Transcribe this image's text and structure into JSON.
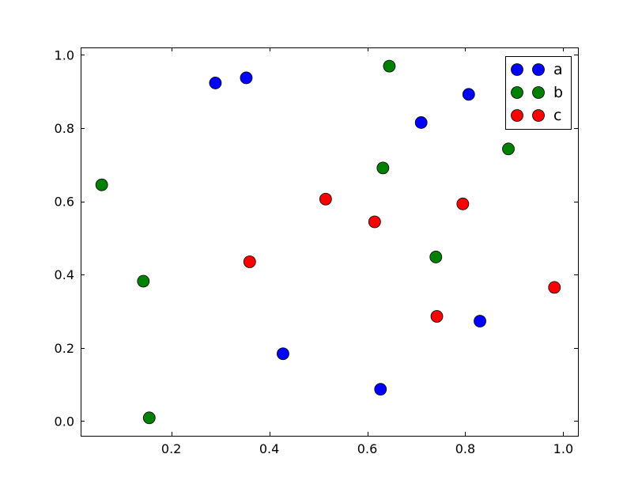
{
  "chart_data": {
    "type": "scatter",
    "title": "",
    "xlabel": "",
    "ylabel": "",
    "xlim": [
      0.015,
      1.03
    ],
    "ylim": [
      -0.04,
      1.02
    ],
    "x_ticks": [
      0.2,
      0.4,
      0.6,
      0.8,
      1.0
    ],
    "x_tick_labels": [
      "0.2",
      "0.4",
      "0.6",
      "0.8",
      "1.0"
    ],
    "y_ticks": [
      0.0,
      0.2,
      0.4,
      0.6,
      0.8,
      1.0
    ],
    "y_tick_labels": [
      "0.0",
      "0.2",
      "0.4",
      "0.6",
      "0.8",
      "1.0"
    ],
    "grid": false,
    "legend_position": "top-right",
    "series": [
      {
        "name": "a",
        "color": "#0000ff",
        "points": [
          {
            "x": 0.29,
            "y": 0.923
          },
          {
            "x": 0.353,
            "y": 0.937
          },
          {
            "x": 0.71,
            "y": 0.815
          },
          {
            "x": 0.807,
            "y": 0.892
          },
          {
            "x": 0.83,
            "y": 0.273
          },
          {
            "x": 0.428,
            "y": 0.184
          },
          {
            "x": 0.627,
            "y": 0.087
          }
        ]
      },
      {
        "name": "b",
        "color": "#008000",
        "points": [
          {
            "x": 0.645,
            "y": 0.969
          },
          {
            "x": 0.888,
            "y": 0.743
          },
          {
            "x": 0.632,
            "y": 0.691
          },
          {
            "x": 0.058,
            "y": 0.645
          },
          {
            "x": 0.143,
            "y": 0.382
          },
          {
            "x": 0.74,
            "y": 0.448
          },
          {
            "x": 0.155,
            "y": 0.009
          }
        ]
      },
      {
        "name": "c",
        "color": "#ff0000",
        "points": [
          {
            "x": 0.515,
            "y": 0.606
          },
          {
            "x": 0.615,
            "y": 0.544
          },
          {
            "x": 0.795,
            "y": 0.593
          },
          {
            "x": 0.36,
            "y": 0.435
          },
          {
            "x": 0.742,
            "y": 0.286
          },
          {
            "x": 0.982,
            "y": 0.365
          }
        ]
      }
    ]
  }
}
